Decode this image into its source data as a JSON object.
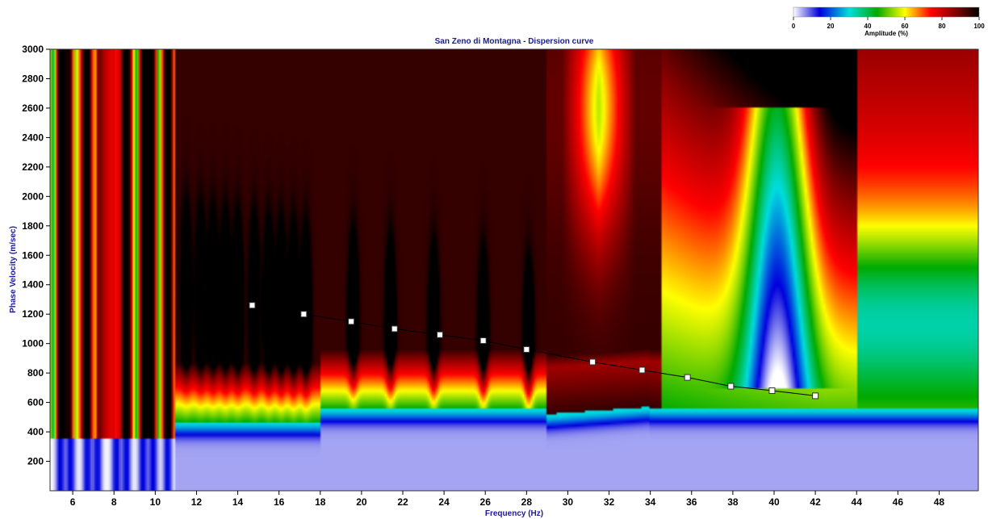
{
  "chart_data": {
    "type": "heatmap",
    "title": "San Zeno di Montagna - Dispersion curve",
    "xlabel": "Frequency (Hz)",
    "ylabel": "Phase Velocity (m/sec)",
    "xlim": [
      4.9,
      49.9
    ],
    "ylim": [
      0,
      3000
    ],
    "x_ticks": [
      6,
      8,
      10,
      12,
      14,
      16,
      18,
      20,
      22,
      24,
      26,
      28,
      30,
      32,
      34,
      36,
      38,
      40,
      42,
      44,
      46,
      48
    ],
    "y_ticks": [
      200,
      400,
      600,
      800,
      1000,
      1200,
      1400,
      1600,
      1800,
      2000,
      2200,
      2400,
      2600,
      2800,
      3000
    ],
    "colorbar": {
      "label": "Amplitude (%)",
      "ticks": [
        0,
        20,
        40,
        60,
        80,
        100
      ],
      "colors": [
        "#ffffff",
        "#0000dd",
        "#00dddd",
        "#00aa00",
        "#ffff00",
        "#ff0000",
        "#880000",
        "#000000"
      ]
    },
    "dispersion_curve": {
      "frequency": [
        14.7,
        17.2,
        19.5,
        21.6,
        23.8,
        25.9,
        28.0,
        31.2,
        33.6,
        35.8,
        37.9,
        39.9,
        42.0
      ],
      "velocity": [
        1260,
        1200,
        1150,
        1100,
        1060,
        1020,
        960,
        875,
        820,
        770,
        710,
        680,
        645
      ]
    }
  }
}
